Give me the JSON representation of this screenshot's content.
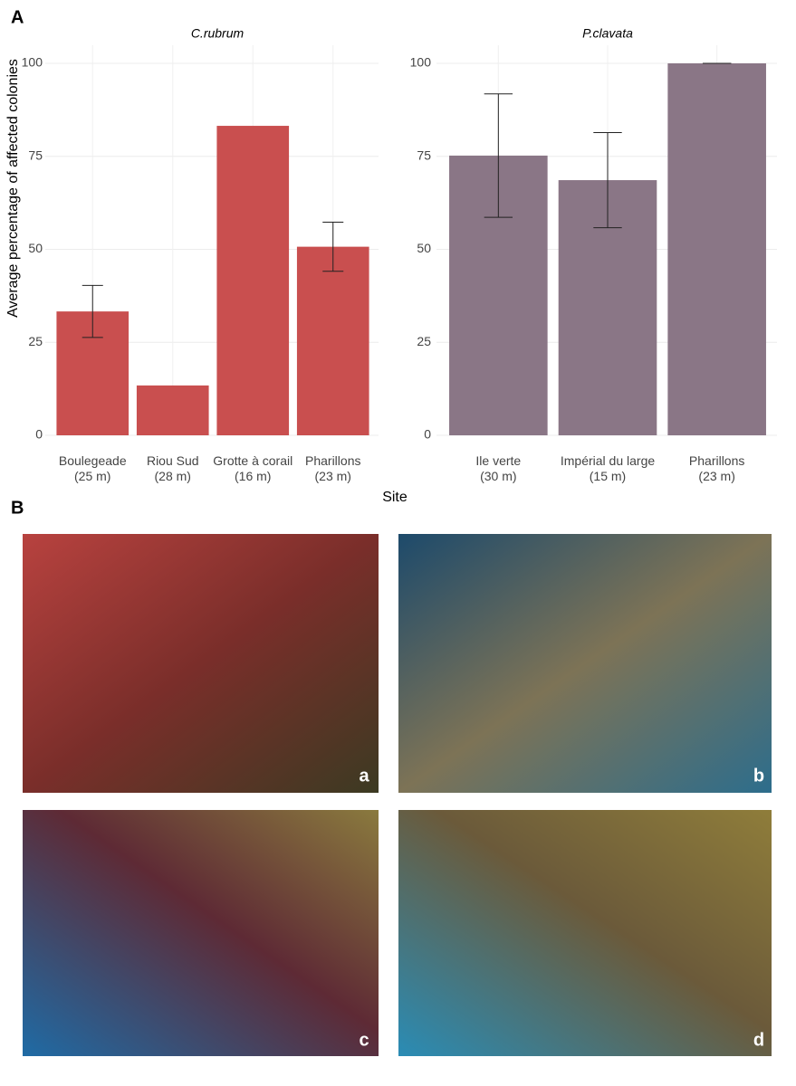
{
  "figure": {
    "panel_a": "A",
    "panel_b": "B",
    "y_label": "Average percentage of affected colonies",
    "x_label": "Site"
  },
  "chart_data": [
    {
      "type": "bar",
      "title": "C.rubrum",
      "categories": [
        "Boulegeade\n(25 m)",
        "Riou Sud\n(28 m)",
        "Grotte à corail\n(16 m)",
        "Pharillons\n(23 m)"
      ],
      "values": [
        33.3,
        13.4,
        83.2,
        50.7
      ],
      "errors": [
        7,
        null,
        null,
        6.6
      ],
      "color": "#c94f4f",
      "ylim": [
        0,
        100
      ],
      "yticks": [
        0,
        25,
        50,
        75,
        100
      ],
      "grid": true
    },
    {
      "type": "bar",
      "title": "P.clavata",
      "categories": [
        "Ile verte\n(30 m)",
        "Impérial du large\n(15 m)",
        "Pharillons\n(23 m)"
      ],
      "values": [
        75.2,
        68.6,
        100
      ],
      "errors": [
        16.6,
        12.8,
        0
      ],
      "color": "#8a7686",
      "ylim": [
        0,
        100
      ],
      "yticks": [
        0,
        25,
        50,
        75,
        100
      ],
      "grid": true
    }
  ],
  "photos": [
    {
      "label": "a"
    },
    {
      "label": "b"
    },
    {
      "label": "c"
    },
    {
      "label": "d"
    }
  ]
}
